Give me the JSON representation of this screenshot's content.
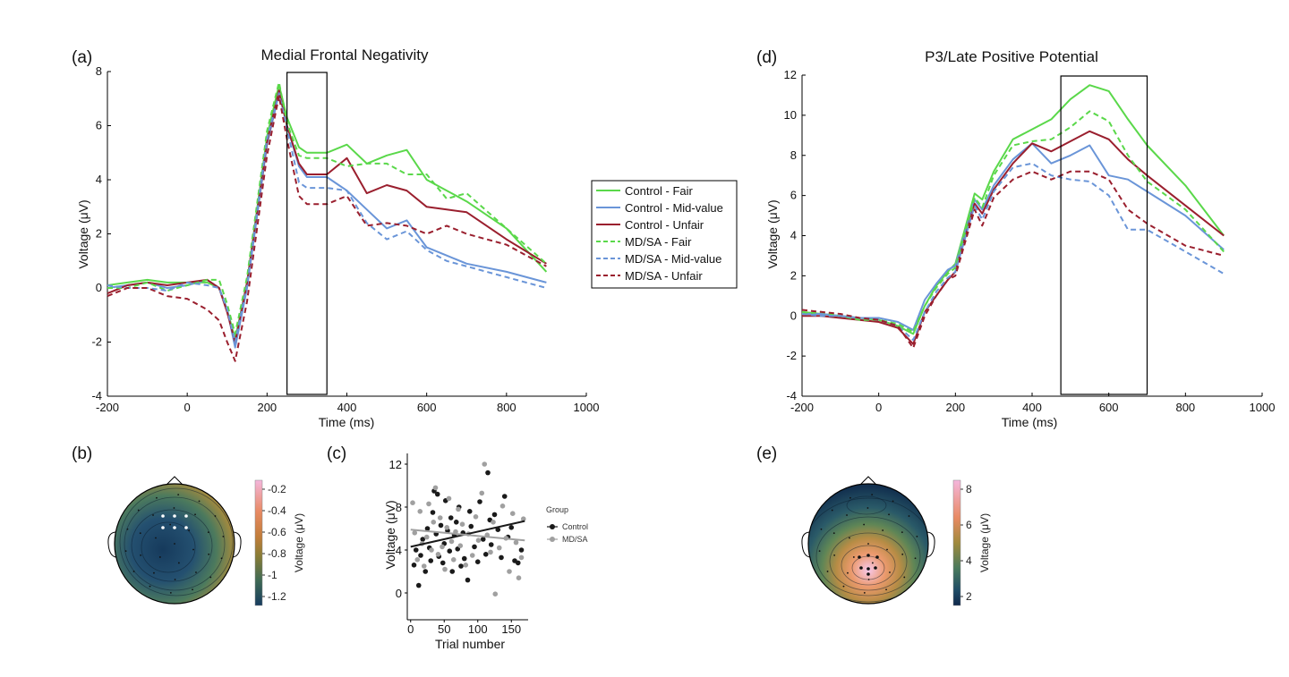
{
  "panels": {
    "a": "(a)",
    "b": "(b)",
    "c": "(c)",
    "d": "(d)",
    "e": "(e)"
  },
  "colors": {
    "green": "#5ad84a",
    "blue": "#6a95d8",
    "red": "#9a1f2e",
    "control_dot": "#1a1a1a",
    "mdsa_dot": "#a0a0a0"
  },
  "legend": {
    "entries": [
      {
        "label": "Control - Fair",
        "color": "#5ad84a",
        "dash": false
      },
      {
        "label": "Control - Mid-value",
        "color": "#6a95d8",
        "dash": false
      },
      {
        "label": "Control - Unfair",
        "color": "#9a1f2e",
        "dash": false
      },
      {
        "label": "MD/SA - Fair",
        "color": "#5ad84a",
        "dash": true
      },
      {
        "label": "MD/SA - Mid-value",
        "color": "#6a95d8",
        "dash": true
      },
      {
        "label": "MD/SA - Unfair",
        "color": "#9a1f2e",
        "dash": true
      }
    ]
  },
  "chart_data": [
    {
      "id": "a",
      "type": "line",
      "title": "Medial Frontal Negativity",
      "xlabel": "Time (ms)",
      "ylabel": "Voltage (μV)",
      "xlim": [
        -200,
        1000
      ],
      "ylim": [
        -4,
        8
      ],
      "xticks": [
        -200,
        0,
        200,
        400,
        600,
        800,
        1000
      ],
      "yticks": [
        -4,
        -2,
        0,
        2,
        4,
        6,
        8
      ],
      "window_ms": [
        250,
        350
      ],
      "x": [
        -200,
        -150,
        -100,
        -50,
        0,
        50,
        80,
        100,
        120,
        150,
        200,
        230,
        250,
        280,
        300,
        350,
        400,
        450,
        500,
        550,
        600,
        650,
        700,
        800,
        900
      ],
      "series": [
        {
          "name": "Control - Fair",
          "color": "#5ad84a",
          "dash": false,
          "values": [
            0.1,
            0.2,
            0.3,
            0.2,
            0.2,
            0.2,
            0.0,
            -0.8,
            -1.9,
            0.2,
            5.6,
            7.5,
            6.3,
            5.2,
            5.0,
            5.0,
            5.3,
            4.6,
            4.9,
            5.1,
            4.0,
            3.6,
            3.2,
            2.2,
            0.6
          ]
        },
        {
          "name": "Control - Mid-value",
          "color": "#6a95d8",
          "dash": false,
          "values": [
            0.0,
            0.1,
            0.2,
            0.0,
            0.1,
            0.3,
            0.0,
            -0.8,
            -2.2,
            0.0,
            5.3,
            7.2,
            6.0,
            4.5,
            4.1,
            4.1,
            3.6,
            2.9,
            2.2,
            2.5,
            1.5,
            1.2,
            0.9,
            0.6,
            0.2
          ]
        },
        {
          "name": "Control - Unfair",
          "color": "#9a1f2e",
          "dash": false,
          "values": [
            -0.2,
            0.1,
            0.2,
            0.1,
            0.2,
            0.3,
            0.0,
            -0.9,
            -2.0,
            0.2,
            5.4,
            7.3,
            6.0,
            4.6,
            4.2,
            4.2,
            4.8,
            3.5,
            3.8,
            3.6,
            3.0,
            2.9,
            2.8,
            1.8,
            0.9
          ]
        },
        {
          "name": "MD/SA - Fair",
          "color": "#5ad84a",
          "dash": true,
          "values": [
            0.0,
            0.0,
            0.2,
            -0.1,
            0.1,
            0.3,
            0.3,
            -0.6,
            -1.7,
            0.4,
            5.8,
            7.6,
            6.1,
            4.9,
            4.8,
            4.8,
            4.5,
            4.6,
            4.6,
            4.2,
            4.2,
            3.3,
            3.5,
            2.2,
            0.9
          ]
        },
        {
          "name": "MD/SA - Mid-value",
          "color": "#6a95d8",
          "dash": true,
          "values": [
            0.1,
            0.0,
            0.0,
            -0.1,
            0.2,
            0.1,
            0.0,
            -0.8,
            -2.0,
            0.1,
            5.5,
            7.2,
            5.9,
            3.9,
            3.7,
            3.7,
            3.6,
            2.4,
            1.8,
            2.1,
            1.4,
            1.0,
            0.8,
            0.4,
            0.0
          ]
        },
        {
          "name": "MD/SA - Unfair",
          "color": "#9a1f2e",
          "dash": true,
          "values": [
            -0.3,
            0.0,
            0.0,
            -0.3,
            -0.4,
            -0.8,
            -1.2,
            -2.0,
            -2.7,
            -0.5,
            4.9,
            7.1,
            5.5,
            3.4,
            3.1,
            3.1,
            3.4,
            2.3,
            2.4,
            2.3,
            2.0,
            2.3,
            2.0,
            1.6,
            0.8
          ]
        }
      ]
    },
    {
      "id": "d",
      "type": "line",
      "title": "P3/Late Positive Potential",
      "xlabel": "Time (ms)",
      "ylabel": "Voltage (μV)",
      "xlim": [
        -200,
        1000
      ],
      "ylim": [
        -4,
        12
      ],
      "xticks": [
        -200,
        0,
        200,
        400,
        600,
        800,
        1000
      ],
      "yticks": [
        -4,
        -2,
        0,
        2,
        4,
        6,
        8,
        10,
        12
      ],
      "window_ms": [
        475,
        700
      ],
      "x": [
        -200,
        -150,
        -100,
        -50,
        0,
        50,
        90,
        120,
        150,
        180,
        200,
        250,
        270,
        300,
        350,
        400,
        450,
        500,
        550,
        600,
        650,
        700,
        800,
        900
      ],
      "series": [
        {
          "name": "Control - Fair",
          "color": "#5ad84a",
          "dash": false,
          "values": [
            0.2,
            0.1,
            0.0,
            -0.1,
            -0.2,
            -0.5,
            -0.9,
            0.5,
            1.5,
            2.2,
            2.6,
            6.1,
            5.8,
            7.2,
            8.8,
            9.3,
            9.8,
            10.8,
            11.5,
            11.2,
            9.8,
            8.5,
            6.5,
            4.0
          ]
        },
        {
          "name": "Control - Mid-value",
          "color": "#6a95d8",
          "dash": false,
          "values": [
            0.1,
            0.1,
            0.0,
            -0.1,
            -0.1,
            -0.3,
            -0.7,
            0.8,
            1.6,
            2.3,
            2.5,
            5.8,
            5.3,
            6.5,
            7.8,
            8.6,
            7.6,
            8.0,
            8.5,
            7.0,
            6.8,
            6.2,
            5.0,
            3.3
          ]
        },
        {
          "name": "Control - Unfair",
          "color": "#9a1f2e",
          "dash": false,
          "values": [
            0.0,
            0.0,
            -0.1,
            -0.2,
            -0.3,
            -0.6,
            -1.4,
            0.2,
            1.0,
            1.8,
            2.2,
            5.6,
            5.1,
            6.3,
            7.6,
            8.6,
            8.2,
            8.7,
            9.2,
            8.8,
            7.8,
            7.0,
            5.5,
            4.0
          ]
        },
        {
          "name": "MD/SA - Fair",
          "color": "#5ad84a",
          "dash": true,
          "values": [
            0.1,
            0.2,
            0.0,
            -0.2,
            -0.2,
            -0.4,
            -0.8,
            0.5,
            1.4,
            2.1,
            2.4,
            5.9,
            5.4,
            7.0,
            8.5,
            8.7,
            8.8,
            9.4,
            10.2,
            9.7,
            8.0,
            6.7,
            5.3,
            3.2
          ]
        },
        {
          "name": "MD/SA - Mid-value",
          "color": "#6a95d8",
          "dash": true,
          "values": [
            0.1,
            0.0,
            0.0,
            -0.1,
            -0.2,
            -0.5,
            -1.2,
            0.2,
            1.2,
            1.9,
            2.2,
            5.5,
            4.8,
            6.2,
            7.4,
            7.6,
            7.0,
            6.8,
            6.7,
            6.0,
            4.3,
            4.3,
            3.2,
            2.1
          ]
        },
        {
          "name": "MD/SA - Unfair",
          "color": "#9a1f2e",
          "dash": true,
          "values": [
            0.3,
            0.2,
            0.1,
            -0.1,
            -0.2,
            -0.5,
            -1.6,
            0.0,
            1.0,
            1.8,
            2.0,
            5.3,
            4.5,
            5.9,
            6.8,
            7.2,
            6.8,
            7.2,
            7.2,
            6.8,
            5.3,
            4.6,
            3.5,
            3.0
          ]
        }
      ]
    },
    {
      "id": "c",
      "type": "scatter",
      "xlabel": "Trial number",
      "ylabel": "Voltage (μV)",
      "xlim": [
        -5,
        175
      ],
      "ylim": [
        -2.5,
        13
      ],
      "xticks": [
        0,
        50,
        100,
        150
      ],
      "yticks": [
        0,
        4,
        8,
        12
      ],
      "legend_title": "Group",
      "series": [
        {
          "name": "Control",
          "color": "#1a1a1a",
          "points": [
            [
              5,
              2.6
            ],
            [
              8,
              4.0
            ],
            [
              12,
              0.7
            ],
            [
              15,
              3.5
            ],
            [
              18,
              5.0
            ],
            [
              22,
              2.0
            ],
            [
              25,
              6.0
            ],
            [
              28,
              4.2
            ],
            [
              30,
              3.0
            ],
            [
              33,
              7.5
            ],
            [
              35,
              9.5
            ],
            [
              38,
              5.5
            ],
            [
              40,
              9.2
            ],
            [
              42,
              3.4
            ],
            [
              45,
              6.3
            ],
            [
              48,
              2.8
            ],
            [
              50,
              4.6
            ],
            [
              52,
              8.6
            ],
            [
              55,
              5.8
            ],
            [
              58,
              3.9
            ],
            [
              60,
              7.0
            ],
            [
              62,
              2.0
            ],
            [
              65,
              5.4
            ],
            [
              68,
              6.6
            ],
            [
              70,
              4.1
            ],
            [
              72,
              8.0
            ],
            [
              75,
              2.5
            ],
            [
              78,
              5.6
            ],
            [
              80,
              3.2
            ],
            [
              85,
              1.2
            ],
            [
              88,
              7.6
            ],
            [
              90,
              6.2
            ],
            [
              95,
              4.3
            ],
            [
              100,
              2.9
            ],
            [
              103,
              8.5
            ],
            [
              108,
              5.0
            ],
            [
              112,
              3.6
            ],
            [
              115,
              11.2
            ],
            [
              118,
              6.8
            ],
            [
              120,
              4.5
            ],
            [
              125,
              7.3
            ],
            [
              130,
              5.9
            ],
            [
              135,
              3.3
            ],
            [
              140,
              9.0
            ],
            [
              145,
              5.2
            ],
            [
              150,
              6.1
            ],
            [
              155,
              3.0
            ],
            [
              160,
              2.8
            ],
            [
              165,
              4.0
            ]
          ]
        },
        {
          "name": "MD/SA",
          "color": "#a0a0a0",
          "points": [
            [
              3,
              8.4
            ],
            [
              6,
              5.6
            ],
            [
              10,
              3.1
            ],
            [
              14,
              7.6
            ],
            [
              17,
              4.6
            ],
            [
              20,
              2.5
            ],
            [
              24,
              5.2
            ],
            [
              27,
              8.3
            ],
            [
              31,
              4.0
            ],
            [
              34,
              6.6
            ],
            [
              37,
              9.8
            ],
            [
              41,
              3.6
            ],
            [
              44,
              7.0
            ],
            [
              47,
              4.3
            ],
            [
              51,
              2.2
            ],
            [
              54,
              6.1
            ],
            [
              57,
              8.8
            ],
            [
              61,
              4.8
            ],
            [
              64,
              3.1
            ],
            [
              67,
              5.7
            ],
            [
              71,
              7.8
            ],
            [
              74,
              4.4
            ],
            [
              77,
              6.4
            ],
            [
              82,
              2.6
            ],
            [
              86,
              5.5
            ],
            [
              92,
              3.5
            ],
            [
              97,
              7.1
            ],
            [
              101,
              4.9
            ],
            [
              106,
              9.3
            ],
            [
              110,
              12.0
            ],
            [
              114,
              5.4
            ],
            [
              119,
              3.8
            ],
            [
              123,
              6.6
            ],
            [
              126,
              -0.1
            ],
            [
              132,
              4.2
            ],
            [
              137,
              8.1
            ],
            [
              142,
              5.1
            ],
            [
              147,
              2.0
            ],
            [
              152,
              7.4
            ],
            [
              157,
              4.7
            ],
            [
              161,
              1.4
            ],
            [
              165,
              3.3
            ],
            [
              168,
              6.9
            ]
          ]
        }
      ],
      "fits": [
        {
          "name": "Control",
          "color": "#1a1a1a",
          "x": [
            0,
            170
          ],
          "y": [
            4.3,
            6.7
          ]
        },
        {
          "name": "MD/SA",
          "color": "#a0a0a0",
          "x": [
            0,
            170
          ],
          "y": [
            5.9,
            4.9
          ]
        }
      ]
    }
  ],
  "topomaps": {
    "b": {
      "colorbar_label": "Voltage (μV)",
      "colorbar_ticks": [
        "-0.2",
        "-0.4",
        "-0.6",
        "-0.8",
        "-1",
        "-1.2"
      ],
      "colorbar_stops": [
        "#f4b6dc",
        "#e88a63",
        "#c27d3a",
        "#8a7d35",
        "#3f6a54",
        "#173c5f"
      ]
    },
    "e": {
      "colorbar_label": "Voltage (μV)",
      "colorbar_ticks": [
        "8",
        "6",
        "4",
        "2"
      ],
      "colorbar_stops": [
        "#f4b6dc",
        "#e88a63",
        "#a08a3d",
        "#4a7a5c",
        "#1f4c66",
        "#10284b"
      ]
    }
  }
}
